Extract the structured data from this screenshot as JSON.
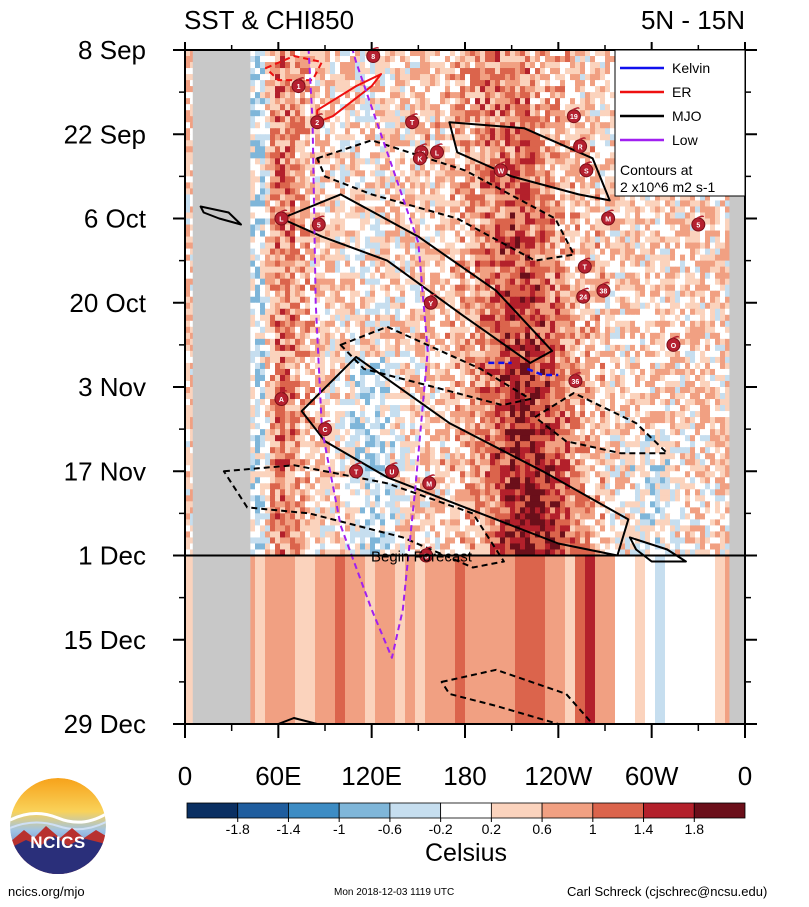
{
  "chart_data": {
    "type": "heatmap",
    "title_left": "SST & CHI850",
    "title_right": "5N - 15N",
    "x_ticks": [
      "0",
      "60E",
      "120E",
      "180",
      "120W",
      "60W",
      "0"
    ],
    "x_tick_longitudes": [
      0,
      60,
      120,
      180,
      240,
      300,
      360
    ],
    "y_ticks": [
      "8 Sep",
      "22 Sep",
      "6 Oct",
      "20 Oct",
      "3 Nov",
      "17 Nov",
      "1 Dec",
      "15 Dec",
      "29 Dec"
    ],
    "y_tick_dates": [
      "2018-09-08",
      "2018-09-22",
      "2018-10-06",
      "2018-10-20",
      "2018-11-03",
      "2018-11-17",
      "2018-12-01",
      "2018-12-15",
      "2018-12-29"
    ],
    "forecast_start": "2018-12-01",
    "forecast_label": "Begin Forecast",
    "colorbar": {
      "label": "Celsius",
      "tick_labels": [
        "-1.8",
        "-1.4",
        "-1",
        "-0.6",
        "-0.2",
        "0.2",
        "0.6",
        "1",
        "1.4",
        "1.8"
      ],
      "colors": [
        "#0a2f62",
        "#1f5d9e",
        "#3d8cc4",
        "#7fb6d9",
        "#c6deef",
        "#ffffff",
        "#fbd3bd",
        "#f1a082",
        "#db644c",
        "#b3202b",
        "#6b0f1a"
      ]
    },
    "land_masks": [
      {
        "lon": [
          5,
          42
        ],
        "end": "2018-12-29"
      },
      {
        "lon": [
          350,
          360
        ],
        "end": "2018-12-29"
      }
    ],
    "legend": {
      "entries": [
        {
          "name": "Kelvin",
          "color": "#1010ee"
        },
        {
          "name": "ER",
          "color": "#ee1010"
        },
        {
          "name": "MJO",
          "color": "#000000"
        },
        {
          "name": "Low",
          "color": "#a020f0"
        }
      ],
      "note_line1": "Contours at",
      "note_line2": "2 x10^6 m2 s-1",
      "position": "top-right"
    },
    "mjo_contours": [
      {
        "style": "solid",
        "points": [
          [
            170,
            "2018-09-20"
          ],
          [
            218,
            "2018-09-21"
          ],
          [
            262,
            "2018-09-26"
          ],
          [
            273,
            "2018-10-03"
          ],
          [
            253,
            "2018-10-02"
          ],
          [
            210,
            "2018-09-29"
          ],
          [
            175,
            "2018-09-25"
          ]
        ]
      },
      {
        "style": "solid",
        "points": [
          [
            62,
            "2018-10-06"
          ],
          [
            100,
            "2018-10-02"
          ],
          [
            150,
            "2018-10-09"
          ],
          [
            200,
            "2018-10-18"
          ],
          [
            236,
            "2018-10-28"
          ],
          [
            222,
            "2018-10-30"
          ],
          [
            178,
            "2018-10-22"
          ],
          [
            130,
            "2018-10-13"
          ],
          [
            88,
            "2018-10-09"
          ]
        ]
      },
      {
        "style": "solid",
        "points": [
          [
            75,
            "2018-11-07"
          ],
          [
            110,
            "2018-10-29"
          ],
          [
            170,
            "2018-11-09"
          ],
          [
            230,
            "2018-11-17"
          ],
          [
            285,
            "2018-11-25"
          ],
          [
            278,
            "2018-12-01"
          ],
          [
            240,
            "2018-11-29"
          ],
          [
            180,
            "2018-11-23"
          ],
          [
            130,
            "2018-11-18"
          ],
          [
            90,
            "2018-11-12"
          ]
        ]
      },
      {
        "style": "solid",
        "points": [
          [
            10,
            "2018-10-04"
          ],
          [
            28,
            "2018-10-05"
          ],
          [
            36,
            "2018-10-07"
          ],
          [
            22,
            "2018-10-06"
          ],
          [
            12,
            "2018-10-05"
          ]
        ]
      },
      {
        "style": "solid",
        "points": [
          [
            286,
            "2018-11-28"
          ],
          [
            310,
            "2018-11-30"
          ],
          [
            322,
            "2018-12-02"
          ],
          [
            300,
            "2018-12-02"
          ],
          [
            290,
            "2018-11-30"
          ]
        ]
      },
      {
        "style": "dashed",
        "points": [
          [
            85,
            "2018-09-26"
          ],
          [
            120,
            "2018-09-23"
          ],
          [
            180,
            "2018-09-28"
          ],
          [
            238,
            "2018-10-06"
          ],
          [
            250,
            "2018-10-12"
          ],
          [
            225,
            "2018-10-13"
          ],
          [
            175,
            "2018-10-06"
          ],
          [
            120,
            "2018-10-02"
          ],
          [
            90,
            "2018-09-29"
          ]
        ]
      },
      {
        "style": "dashed",
        "points": [
          [
            100,
            "2018-10-27"
          ],
          [
            130,
            "2018-10-24"
          ],
          [
            190,
            "2018-10-31"
          ],
          [
            222,
            "2018-11-05"
          ],
          [
            204,
            "2018-11-06"
          ],
          [
            160,
            "2018-11-03"
          ],
          [
            115,
            "2018-10-31"
          ]
        ]
      },
      {
        "style": "dashed",
        "points": [
          [
            225,
            "2018-11-08"
          ],
          [
            250,
            "2018-11-04"
          ],
          [
            290,
            "2018-11-09"
          ],
          [
            310,
            "2018-11-14"
          ],
          [
            280,
            "2018-11-14"
          ],
          [
            245,
            "2018-11-12"
          ]
        ]
      },
      {
        "style": "dashed",
        "points": [
          [
            25,
            "2018-11-17"
          ],
          [
            70,
            "2018-11-16"
          ],
          [
            130,
            "2018-11-19"
          ],
          [
            185,
            "2018-11-24"
          ],
          [
            205,
            "2018-12-02"
          ],
          [
            185,
            "2018-12-03"
          ],
          [
            140,
            "2018-11-28"
          ],
          [
            80,
            "2018-11-24"
          ],
          [
            40,
            "2018-11-23"
          ]
        ]
      },
      {
        "style": "dashed",
        "points": [
          [
            165,
            "2018-12-22"
          ],
          [
            200,
            "2018-12-20"
          ],
          [
            245,
            "2018-12-24"
          ],
          [
            262,
            "2018-12-29"
          ],
          [
            240,
            "2018-12-29"
          ],
          [
            200,
            "2018-12-26"
          ],
          [
            170,
            "2018-12-24"
          ]
        ]
      },
      {
        "style": "solid",
        "points": [
          [
            50,
            "2018-12-30"
          ],
          [
            70,
            "2018-12-28"
          ],
          [
            85,
            "2018-12-29"
          ],
          [
            90,
            "2018-12-31"
          ]
        ]
      }
    ],
    "er_contours": [
      {
        "points": [
          [
            52,
            "2018-09-11"
          ],
          [
            70,
            "2018-09-09"
          ],
          [
            88,
            "2018-09-10"
          ],
          [
            82,
            "2018-09-13"
          ],
          [
            60,
            "2018-09-13"
          ]
        ],
        "style": "dashed"
      },
      {
        "points": [
          [
            85,
            "2018-09-18"
          ],
          [
            110,
            "2018-09-14"
          ],
          [
            126,
            "2018-09-12"
          ],
          [
            120,
            "2018-09-14"
          ],
          [
            95,
            "2018-09-19"
          ],
          [
            85,
            "2018-09-20"
          ]
        ],
        "style": "solid"
      }
    ],
    "kelvin_contours": [
      {
        "points": [
          [
            195,
            "2018-10-30"
          ],
          [
            210,
            "2018-10-30"
          ]
        ],
        "style": "dashed"
      },
      {
        "points": [
          [
            220,
            "2018-10-31"
          ],
          [
            230,
            "2018-11-01"
          ],
          [
            240,
            "2018-11-01"
          ]
        ],
        "style": "dashed"
      }
    ],
    "low_contour": {
      "style": "dashed",
      "points": [
        [
          78,
          "2018-09-01"
        ],
        [
          82,
          "2018-09-20"
        ],
        [
          84,
          "2018-10-20"
        ],
        [
          88,
          "2018-11-10"
        ],
        [
          100,
          "2018-11-26"
        ],
        [
          120,
          "2018-12-10"
        ],
        [
          133,
          "2018-12-18"
        ],
        [
          140,
          "2018-12-10"
        ],
        [
          148,
          "2018-11-20"
        ],
        [
          156,
          "2018-10-28"
        ],
        [
          150,
          "2018-10-10"
        ],
        [
          130,
          "2018-09-25"
        ],
        [
          110,
          "2018-09-10"
        ],
        [
          100,
          "2018-09-01"
        ]
      ]
    },
    "storms": [
      {
        "label": "8",
        "lon": 121,
        "date": "2018-09-09"
      },
      {
        "label": "1",
        "lon": 73,
        "date": "2018-09-14"
      },
      {
        "label": "2",
        "lon": 85,
        "date": "2018-09-20"
      },
      {
        "label": "T",
        "lon": 146,
        "date": "2018-09-20"
      },
      {
        "label": "28",
        "lon": 152,
        "date": "2018-09-25"
      },
      {
        "label": "L",
        "lon": 162,
        "date": "2018-09-25"
      },
      {
        "label": "K",
        "lon": 151,
        "date": "2018-09-26"
      },
      {
        "label": "W",
        "lon": 203,
        "date": "2018-09-28"
      },
      {
        "label": "19",
        "lon": 250,
        "date": "2018-09-19"
      },
      {
        "label": "R",
        "lon": 254,
        "date": "2018-09-24"
      },
      {
        "label": "S",
        "lon": 258,
        "date": "2018-09-28"
      },
      {
        "label": "L",
        "lon": 62,
        "date": "2018-10-06"
      },
      {
        "label": "5",
        "lon": 86,
        "date": "2018-10-07"
      },
      {
        "label": "M",
        "lon": 272,
        "date": "2018-10-06"
      },
      {
        "label": "5",
        "lon": 330,
        "date": "2018-10-07"
      },
      {
        "label": "T",
        "lon": 257,
        "date": "2018-10-14"
      },
      {
        "label": "24",
        "lon": 256,
        "date": "2018-10-19"
      },
      {
        "label": "38",
        "lon": 269,
        "date": "2018-10-18"
      },
      {
        "label": "Y",
        "lon": 158,
        "date": "2018-10-20"
      },
      {
        "label": "O",
        "lon": 314,
        "date": "2018-10-27"
      },
      {
        "label": "36",
        "lon": 251,
        "date": "2018-11-02"
      },
      {
        "label": "A",
        "lon": 62,
        "date": "2018-11-05"
      },
      {
        "label": "C",
        "lon": 90,
        "date": "2018-11-10"
      },
      {
        "label": "T",
        "lon": 110,
        "date": "2018-11-17"
      },
      {
        "label": "U",
        "lon": 133,
        "date": "2018-11-17"
      },
      {
        "label": "M",
        "lon": 157,
        "date": "2018-11-19"
      },
      {
        "label": "O",
        "lon": 155,
        "date": "2018-12-01"
      }
    ]
  },
  "footer": {
    "left": "ncics.org/mjo",
    "center": "Mon 2018-12-03 1119 UTC",
    "right": "Carl Schreck (cjschrec@ncsu.edu)"
  },
  "logo_text": "NCICS"
}
